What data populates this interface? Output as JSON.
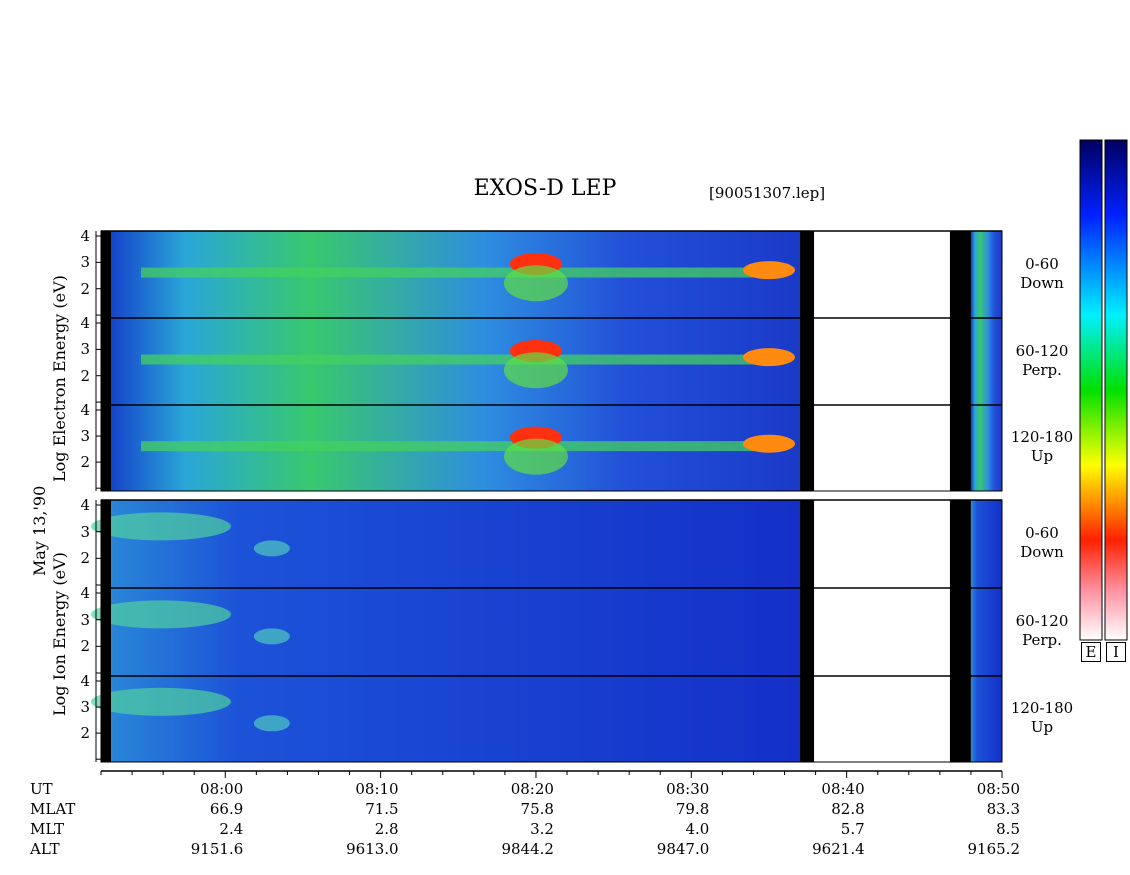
{
  "chart_data": {
    "type": "heatmap",
    "title": "EXOS-D LEP",
    "file": "[90051307.lep]",
    "date_label": "May 13,'90",
    "electron_ylabel": "Log Electron Energy (eV)",
    "ion_ylabel": "Log Ion Energy (eV)",
    "yticks": [
      "4",
      "3",
      "2"
    ],
    "electron_panels": [
      {
        "angle": "0-60",
        "dir": "Down"
      },
      {
        "angle": "60-120",
        "dir": "Perp."
      },
      {
        "angle": "120-180",
        "dir": "Up"
      }
    ],
    "ion_panels": [
      {
        "angle": "0-60",
        "dir": "Down"
      },
      {
        "angle": "60-120",
        "dir": "Perp."
      },
      {
        "angle": "120-180",
        "dir": "Up"
      }
    ],
    "row_labels": [
      "UT",
      "MLAT",
      "MLT",
      "ALT"
    ],
    "ut": [
      "08:00",
      "08:10",
      "08:20",
      "08:30",
      "08:40",
      "08:50"
    ],
    "mlat": [
      "66.9",
      "71.5",
      "75.8",
      "79.8",
      "82.8",
      "83.3"
    ],
    "mlt": [
      "2.4",
      "2.8",
      "3.2",
      "4.0",
      "5.7",
      "8.5"
    ],
    "alt": [
      "9151.6",
      "9613.0",
      "9844.2",
      "9847.0",
      "9621.4",
      "9165.2"
    ],
    "colorbar_labels": [
      "E",
      "I"
    ],
    "data_gap_ut": [
      "08:37",
      "08:48"
    ]
  }
}
